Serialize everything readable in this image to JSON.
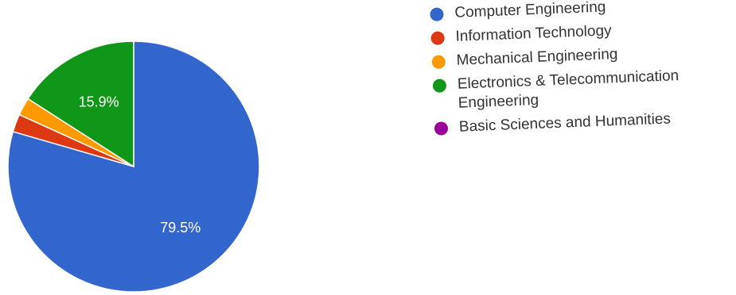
{
  "chart_data": {
    "type": "pie",
    "title": "",
    "slices": [
      {
        "label": "Computer Engineering",
        "value": 79.5,
        "value_label": "79.5%",
        "color": "#3366cc"
      },
      {
        "label": "Information Technology",
        "value": 2.3,
        "value_label": "",
        "color": "#dc3912"
      },
      {
        "label": "Mechanical Engineering",
        "value": 2.3,
        "value_label": "",
        "color": "#ff9900"
      },
      {
        "label": "Electronics & Telecommunication Engineering",
        "value": 15.9,
        "value_label": "15.9%",
        "color": "#109618"
      },
      {
        "label": "Basic Sciences and Humanities",
        "value": 0,
        "value_label": "",
        "color": "#990099"
      }
    ],
    "legend_position": "right"
  }
}
